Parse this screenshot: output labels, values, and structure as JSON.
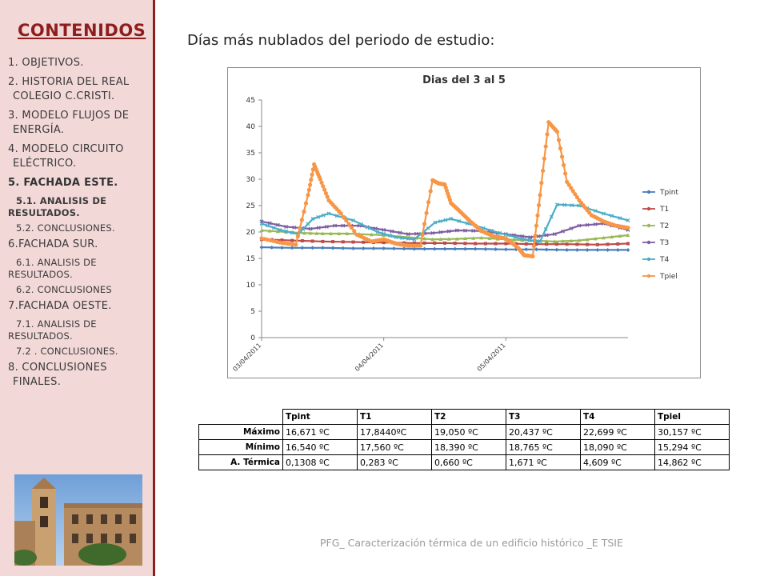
{
  "sidebar": {
    "title": "CONTENIDOS",
    "items": [
      {
        "type": "main",
        "lines": [
          "1. OBJETIVOS."
        ]
      },
      {
        "type": "main",
        "lines": [
          "2. HISTORIA DEL REAL",
          "COLEGIO C.CRISTI."
        ]
      },
      {
        "type": "main",
        "lines": [
          "3. MODELO FLUJOS DE",
          "ENERGÍA."
        ]
      },
      {
        "type": "main",
        "lines": [
          "4. MODELO CIRCUITO",
          "ELÉCTRICO."
        ]
      },
      {
        "type": "main",
        "active": true,
        "lines": [
          "5. FACHADA ESTE."
        ]
      },
      {
        "type": "sub",
        "active": true,
        "lines": [
          "5.1. ANALISIS DE",
          "RESULTADOS."
        ]
      },
      {
        "type": "sub",
        "lines": [
          "5.2. CONCLUSIONES."
        ]
      },
      {
        "type": "main",
        "lines": [
          "6.FACHADA SUR."
        ]
      },
      {
        "type": "sub",
        "lines": [
          "6.1. ANALISIS DE",
          "RESULTADOS."
        ]
      },
      {
        "type": "sub",
        "lines": [
          "6.2. CONCLUSIONES"
        ]
      },
      {
        "type": "main",
        "lines": [
          "7.FACHADA OESTE."
        ]
      },
      {
        "type": "sub",
        "lines": [
          "7.1. ANALISIS DE",
          "RESULTADOS."
        ]
      },
      {
        "type": "sub",
        "lines": [
          "7.2 . CONCLUSIONES."
        ]
      },
      {
        "type": "main",
        "lines": [
          "8. CONCLUSIONES",
          "FINALES."
        ]
      }
    ]
  },
  "main": {
    "heading": "Días más nublados del periodo de estudio:",
    "footer": "PFG_ Caracterización térmica de un edificio histórico _E TSIE"
  },
  "chart_data": {
    "type": "line",
    "title": "Dias del 3 al 5",
    "xlabel": "",
    "ylabel": "",
    "ylim": [
      0,
      45
    ],
    "yticks": [
      0,
      5,
      10,
      15,
      20,
      25,
      30,
      35,
      40,
      45
    ],
    "x_tick_labels": [
      "03/04/2011",
      "04/04/2011",
      "05/04/2011"
    ],
    "x_range_days": [
      0,
      3
    ],
    "legend_position": "right",
    "series": [
      {
        "name": "Tpint",
        "color": "#4a7ebb",
        "marker": "diamond",
        "x": [
          0,
          0.25,
          0.5,
          0.75,
          1.0,
          1.25,
          1.5,
          1.75,
          2.0,
          2.25,
          2.5,
          2.75,
          3.0
        ],
        "y": [
          17.1,
          17.0,
          17.0,
          16.9,
          16.9,
          16.8,
          16.8,
          16.8,
          16.7,
          16.7,
          16.6,
          16.6,
          16.6
        ]
      },
      {
        "name": "T1",
        "color": "#be4b48",
        "marker": "square",
        "x": [
          0,
          0.25,
          0.5,
          0.75,
          1.0,
          1.25,
          1.5,
          1.75,
          2.0,
          2.25,
          2.5,
          2.75,
          3.0
        ],
        "y": [
          18.6,
          18.4,
          18.2,
          18.1,
          18.0,
          17.9,
          17.9,
          17.8,
          17.8,
          17.7,
          17.7,
          17.6,
          17.8
        ]
      },
      {
        "name": "T2",
        "color": "#98b954",
        "marker": "triangle",
        "x": [
          0,
          0.2,
          0.35,
          0.5,
          0.7,
          1.0,
          1.2,
          1.4,
          1.6,
          1.8,
          2.0,
          2.2,
          2.4,
          2.6,
          2.8,
          3.0
        ],
        "y": [
          20.3,
          20.0,
          19.8,
          19.7,
          19.7,
          19.4,
          19.0,
          18.6,
          18.7,
          18.9,
          18.6,
          18.4,
          18.2,
          18.4,
          18.9,
          19.4
        ]
      },
      {
        "name": "T3",
        "color": "#7e5ea1",
        "marker": "x",
        "x": [
          0,
          0.2,
          0.4,
          0.6,
          0.8,
          1.0,
          1.2,
          1.4,
          1.6,
          1.8,
          2.0,
          2.2,
          2.4,
          2.6,
          2.8,
          3.0
        ],
        "y": [
          22.0,
          21.0,
          20.6,
          21.2,
          21.2,
          20.4,
          19.6,
          19.8,
          20.3,
          20.2,
          19.6,
          19.0,
          19.6,
          21.2,
          21.6,
          20.4
        ]
      },
      {
        "name": "T4",
        "color": "#4bacc6",
        "marker": "star",
        "x": [
          0,
          0.15,
          0.3,
          0.42,
          0.55,
          0.75,
          0.95,
          1.1,
          1.25,
          1.42,
          1.55,
          1.75,
          1.95,
          2.15,
          2.28,
          2.42,
          2.6,
          2.8,
          3.0
        ],
        "y": [
          21.6,
          20.4,
          19.6,
          22.5,
          23.5,
          22.2,
          20.0,
          19.0,
          18.6,
          21.8,
          22.5,
          21.2,
          19.8,
          18.6,
          18.2,
          25.2,
          25.0,
          23.5,
          22.2
        ]
      },
      {
        "name": "Tpiel",
        "color": "#f79646",
        "marker": "circle",
        "x": [
          0,
          0.15,
          0.28,
          0.38,
          0.43,
          0.48,
          0.55,
          0.65,
          0.78,
          0.9,
          1.0,
          1.1,
          1.2,
          1.3,
          1.4,
          1.45,
          1.5,
          1.55,
          1.62,
          1.7,
          1.8,
          1.9,
          2.0,
          2.1,
          2.15,
          2.22,
          2.28,
          2.35,
          2.42,
          2.5,
          2.6,
          2.7,
          2.8,
          2.9,
          3.0
        ],
        "y": [
          18.8,
          18.0,
          17.6,
          27.0,
          32.8,
          30.0,
          26.0,
          23.5,
          19.5,
          18.2,
          18.6,
          17.8,
          17.4,
          17.4,
          29.8,
          29.2,
          29.0,
          25.5,
          24.0,
          22.2,
          20.2,
          19.2,
          18.8,
          17.0,
          15.6,
          15.4,
          27.0,
          40.8,
          39.0,
          29.5,
          26.0,
          23.2,
          22.0,
          21.2,
          20.8
        ]
      }
    ]
  },
  "table": {
    "headers": [
      "",
      "Tpint",
      "T1",
      "T2",
      "T3",
      "T4",
      "Tpiel"
    ],
    "rows": [
      {
        "label": "Máximo",
        "values": [
          "16,671 ºC",
          "17,8440ºC",
          "19,050 ºC",
          "20,437 ºC",
          "22,699 ºC",
          "30,157 ºC"
        ]
      },
      {
        "label": "Mínimo",
        "values": [
          "16,540 ºC",
          "17,560 ºC",
          "18,390 ºC",
          "18,765 ºC",
          "18,090 ºC",
          "15,294 ºC"
        ]
      },
      {
        "label": "A. Térmica",
        "values": [
          "0,1308 ºC",
          "0,283 ºC",
          "0,660 ºC",
          "1,671 ºC",
          "4,609 ºC",
          "14,862 ºC"
        ]
      }
    ]
  }
}
